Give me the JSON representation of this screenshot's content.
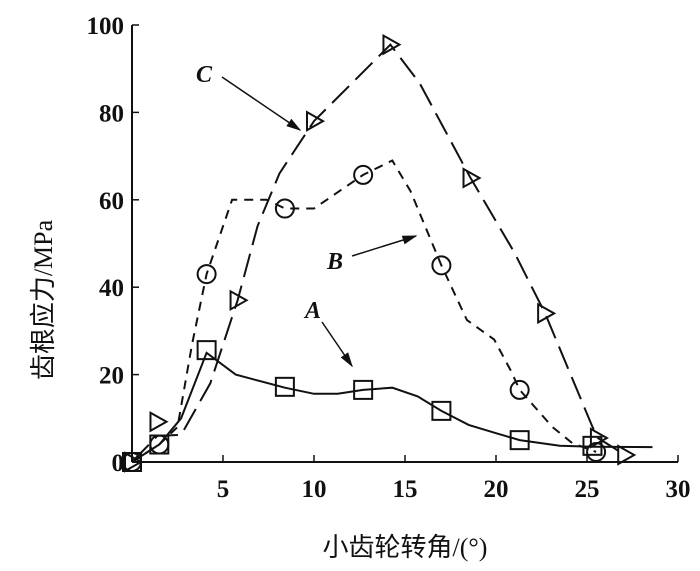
{
  "chart_data": {
    "type": "line",
    "title": "",
    "xlabel": "小齿轮转角/(°)",
    "ylabel": "齿根应力/MPa",
    "xlim": [
      0,
      30
    ],
    "ylim": [
      0,
      100
    ],
    "xticks": [
      5,
      10,
      15,
      20,
      25,
      30
    ],
    "yticks": [
      0,
      20,
      40,
      60,
      80,
      100
    ],
    "grid": false,
    "series": [
      {
        "name": "A",
        "style": "solid",
        "marker": "square",
        "line": [
          [
            0,
            0
          ],
          [
            1.5,
            4
          ],
          [
            2.7,
            10
          ],
          [
            4.1,
            25
          ],
          [
            5.7,
            20
          ],
          [
            8.4,
            17
          ],
          [
            10,
            15.6
          ],
          [
            11.3,
            15.6
          ],
          [
            12.7,
            16.5
          ],
          [
            14.3,
            17
          ],
          [
            15.7,
            15
          ],
          [
            17,
            11.7
          ],
          [
            18.5,
            8.5
          ],
          [
            20,
            6.6
          ],
          [
            21.3,
            5
          ],
          [
            23.5,
            3.7
          ],
          [
            25.3,
            3.5
          ],
          [
            28.6,
            3.4
          ]
        ],
        "markers": [
          [
            0,
            0
          ],
          [
            1.5,
            4
          ],
          [
            4.1,
            25.6
          ],
          [
            8.4,
            17.2
          ],
          [
            12.7,
            16.5
          ],
          [
            17,
            11.7
          ],
          [
            21.3,
            5
          ],
          [
            25.3,
            3.7
          ]
        ]
      },
      {
        "name": "B",
        "style": "short-dash",
        "marker": "circle",
        "line": [
          [
            0,
            0
          ],
          [
            1.5,
            4
          ],
          [
            2.5,
            8
          ],
          [
            3.3,
            27
          ],
          [
            4.1,
            43
          ],
          [
            5.5,
            60
          ],
          [
            7.4,
            60
          ],
          [
            8.4,
            58
          ],
          [
            10,
            58
          ],
          [
            12.7,
            65.7
          ],
          [
            14.3,
            69
          ],
          [
            15.3,
            62
          ],
          [
            17,
            45
          ],
          [
            18.4,
            32.5
          ],
          [
            19.9,
            28
          ],
          [
            20.8,
            21
          ],
          [
            21.3,
            16.5
          ],
          [
            23.1,
            8
          ],
          [
            24.2,
            4.3
          ],
          [
            25.5,
            2.3
          ]
        ],
        "markers": [
          [
            0,
            0
          ],
          [
            1.5,
            4
          ],
          [
            4.1,
            43
          ],
          [
            8.4,
            58
          ],
          [
            12.7,
            65.7
          ],
          [
            17,
            45
          ],
          [
            21.3,
            16.5
          ],
          [
            25.5,
            2.3
          ]
        ]
      },
      {
        "name": "C",
        "style": "long-dash",
        "marker": "triangle-right",
        "line": [
          [
            0,
            0
          ],
          [
            1.4,
            6
          ],
          [
            2.7,
            6.2
          ],
          [
            4.3,
            18
          ],
          [
            5.8,
            37
          ],
          [
            6.9,
            54
          ],
          [
            8.1,
            66
          ],
          [
            10,
            78
          ],
          [
            14.2,
            95.5
          ],
          [
            15.8,
            86.7
          ],
          [
            18.6,
            65
          ],
          [
            21,
            48
          ],
          [
            22.7,
            34
          ],
          [
            25.3,
            8
          ],
          [
            25.6,
            5.5
          ],
          [
            27.1,
            1.6
          ]
        ],
        "markers": [
          [
            0,
            0
          ],
          [
            1.4,
            9.2
          ],
          [
            5.8,
            37
          ],
          [
            10,
            78
          ],
          [
            14.2,
            95.5
          ],
          [
            18.6,
            65
          ],
          [
            22.7,
            34
          ],
          [
            25.6,
            5.5
          ],
          [
            27.1,
            1.6
          ]
        ]
      }
    ],
    "annotations": [
      {
        "text": "A",
        "series": "A"
      },
      {
        "text": "B",
        "series": "B"
      },
      {
        "text": "C",
        "series": "C"
      }
    ]
  }
}
